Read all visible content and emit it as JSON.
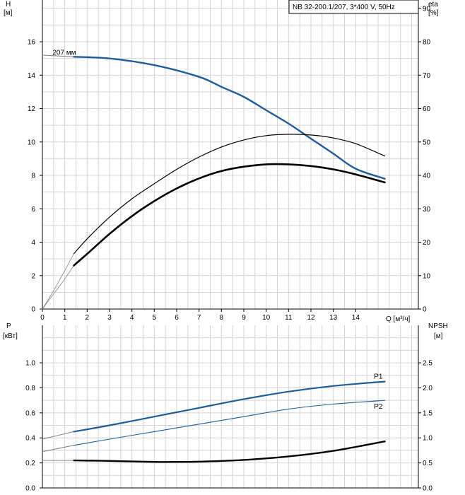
{
  "chart_data": [
    {
      "type": "line",
      "title": "NB 32-200.1/207, 3*400 V, 50Hz",
      "xlabel": "Q [м³/ч]",
      "x_ticks": [
        0,
        1,
        2,
        3,
        4,
        5,
        6,
        7,
        8,
        9,
        10,
        11,
        12,
        13,
        14
      ],
      "xlim": [
        0,
        16.8
      ],
      "ylabel_left_line1": "H",
      "ylabel_left_line2": "[м]",
      "ylim_left": [
        0,
        18.5
      ],
      "y_ticks_left": [
        0,
        2,
        4,
        6,
        8,
        10,
        12,
        14,
        16
      ],
      "ylabel_right_line1": "eta",
      "ylabel_right_line2": "[%]",
      "ylim_right": [
        0,
        92.5
      ],
      "y_ticks_right": [
        0,
        10,
        20,
        30,
        40,
        50,
        60,
        70,
        80,
        90
      ],
      "grid": true,
      "legend": "top-right",
      "series": [
        {
          "name": "207 мм",
          "axis": "left",
          "color": "#1f5c9a",
          "width": 2.4,
          "x": [
            1.4,
            3,
            5,
            7,
            8,
            9,
            10,
            11,
            12,
            13,
            14,
            15.3
          ],
          "y": [
            15.1,
            15.0,
            14.6,
            13.9,
            13.3,
            12.7,
            11.9,
            11.1,
            10.2,
            9.3,
            8.4,
            7.8
          ]
        },
        {
          "name": "",
          "axis": "left",
          "color": "#7a7a7a",
          "width": 1,
          "x": [
            0,
            1.4
          ],
          "y": [
            15.2,
            15.1
          ]
        },
        {
          "name": "",
          "axis": "right",
          "color": "#000000",
          "width": 1.2,
          "x": [
            1.4,
            2,
            3,
            4,
            5,
            6,
            7,
            8,
            9,
            10,
            11,
            12,
            13,
            14,
            15.3
          ],
          "y": [
            16.5,
            21,
            27.5,
            33,
            37.5,
            41.8,
            45.5,
            48.5,
            50.6,
            51.9,
            52.3,
            52.1,
            51.2,
            49.5,
            45.8
          ]
        },
        {
          "name": "",
          "axis": "right",
          "color": "#000000",
          "width": 2.6,
          "x": [
            1.4,
            2,
            3,
            4,
            5,
            6,
            7,
            8,
            9,
            10,
            11,
            12,
            13,
            14,
            15.3
          ],
          "y": [
            13,
            16.5,
            22.5,
            27.8,
            32.3,
            36.1,
            39.1,
            41.3,
            42.6,
            43.3,
            43.3,
            42.8,
            41.8,
            40.3,
            37.9
          ]
        },
        {
          "name": "",
          "axis": "right",
          "color": "#8a8a8a",
          "width": 0.8,
          "x": [
            0,
            0.5,
            1,
            1.4
          ],
          "y": [
            0,
            5.5,
            11.5,
            16.5
          ]
        },
        {
          "name": "",
          "axis": "right",
          "color": "#8a8a8a",
          "width": 0.8,
          "x": [
            0,
            0.5,
            1,
            1.4
          ],
          "y": [
            0,
            4.5,
            9,
            13
          ]
        }
      ]
    },
    {
      "type": "line",
      "xlim": [
        0,
        16.8
      ],
      "ylabel_left_line1": "P",
      "ylabel_left_line2": "[кВт]",
      "ylim_left": [
        0,
        1.3
      ],
      "y_ticks_left": [
        "0.0",
        "0.2",
        "0.4",
        "0.6",
        "0.8",
        "1.0"
      ],
      "ylabel_right_line1": "NPSH",
      "ylabel_right_line2": "[м]",
      "ylim_right": [
        0,
        3.25
      ],
      "y_ticks_right": [
        "0.0",
        "0.5",
        "1.0",
        "1.5",
        "2.0",
        "2.5"
      ],
      "grid": true,
      "series": [
        {
          "name": "P1",
          "axis": "left",
          "color": "#1f5c9a",
          "width": 2.2,
          "x": [
            1.4,
            3,
            5,
            7,
            9,
            11,
            13,
            15.3
          ],
          "y": [
            0.45,
            0.5,
            0.57,
            0.64,
            0.71,
            0.77,
            0.815,
            0.85
          ]
        },
        {
          "name": "P2",
          "axis": "left",
          "color": "#1f5c9a",
          "width": 1.1,
          "x": [
            1.4,
            3,
            5,
            7,
            9,
            11,
            13,
            15.3
          ],
          "y": [
            0.34,
            0.39,
            0.45,
            0.51,
            0.57,
            0.63,
            0.67,
            0.7
          ]
        },
        {
          "name": "",
          "axis": "left",
          "color": "#7a7a7a",
          "width": 1,
          "x": [
            0,
            1.4
          ],
          "y": [
            0.39,
            0.45
          ]
        },
        {
          "name": "",
          "axis": "left",
          "color": "#7a7a7a",
          "width": 1,
          "x": [
            0,
            1.4
          ],
          "y": [
            0.29,
            0.34
          ]
        },
        {
          "name": "",
          "axis": "right",
          "color": "#000000",
          "width": 2.4,
          "x": [
            1.4,
            3,
            5,
            6,
            7,
            8,
            9,
            10,
            11,
            12,
            13,
            14,
            15.3
          ],
          "y": [
            0.55,
            0.54,
            0.52,
            0.52,
            0.525,
            0.54,
            0.56,
            0.59,
            0.63,
            0.68,
            0.74,
            0.82,
            0.93
          ]
        },
        {
          "name": "",
          "axis": "right",
          "color": "#8a8a8a",
          "width": 1,
          "x": [
            0,
            1.4
          ],
          "y": [
            0.55,
            0.55
          ]
        }
      ]
    }
  ]
}
